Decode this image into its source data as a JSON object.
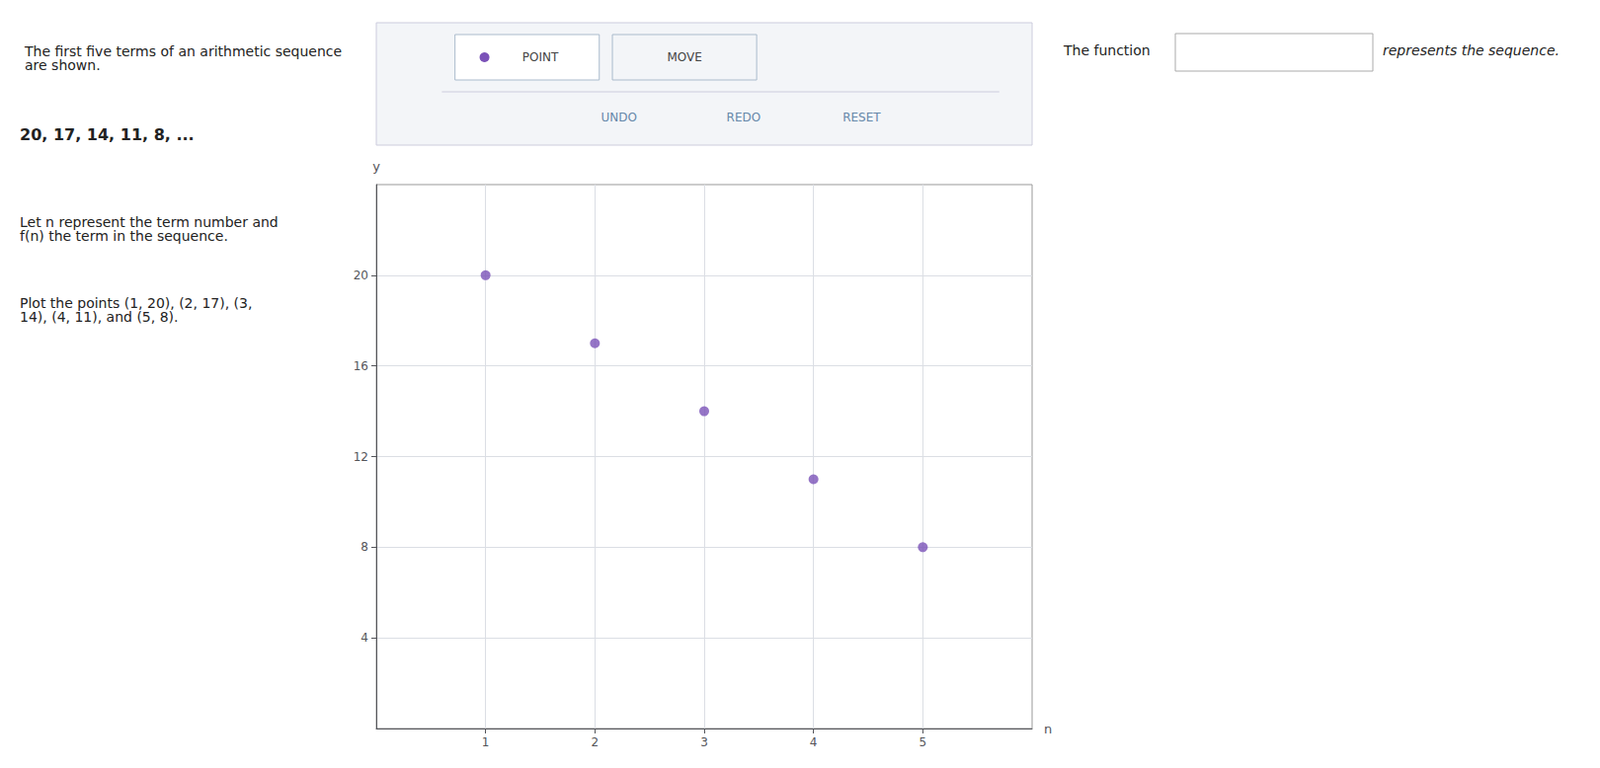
{
  "chart_data": {
    "type": "scatter",
    "title": "The first five terms of an arithmetic sequence are shown.",
    "annotations": [
      "20, 17, 14, 11, 8, ...",
      "Let n represent the term number and f(n) the term in the sequence.",
      "Plot the points (1, 20), (2, 17), (3, 14), (4, 11), and (5, 8).",
      "The function",
      "represents the sequence.",
      "POINT",
      "MOVE",
      "UNDO",
      "REDO",
      "RESET"
    ],
    "x": [
      1,
      2,
      3,
      4,
      5
    ],
    "values": [
      20,
      17,
      14,
      11,
      8
    ],
    "color": "#7B52B8",
    "xlabel": "n",
    "ylabel": "y",
    "xlim": [
      0,
      6
    ],
    "xticks": [
      1,
      2,
      3,
      4,
      5
    ],
    "ylim": [
      0,
      24
    ],
    "yticks": [
      4,
      8,
      12,
      16,
      20
    ],
    "grid": true
  }
}
